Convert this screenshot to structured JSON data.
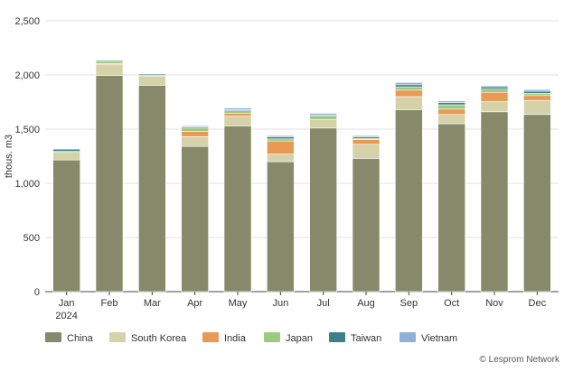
{
  "chart_data": {
    "type": "bar",
    "stacked": true,
    "categories": [
      "Jan",
      "Feb",
      "Mar",
      "Apr",
      "May",
      "Jun",
      "Jul",
      "Aug",
      "Sep",
      "Oct",
      "Nov",
      "Dec"
    ],
    "year_label": "2024",
    "ylabel": "thous. m3",
    "xlabel": "",
    "ylim": [
      0,
      2500
    ],
    "yticks": [
      "0",
      "500",
      "1,000",
      "1,500",
      "2,000",
      "2,500"
    ],
    "ytick_values": [
      0,
      500,
      1000,
      1500,
      2000,
      2500
    ],
    "grid": true,
    "legend_position": "bottom-left",
    "series": [
      {
        "name": "China",
        "color": "#878a6a",
        "values": [
          1215,
          1995,
          1905,
          1340,
          1530,
          1200,
          1510,
          1230,
          1680,
          1550,
          1660,
          1635
        ]
      },
      {
        "name": "South Korea",
        "color": "#d5d1a8",
        "values": [
          70,
          100,
          85,
          90,
          90,
          70,
          80,
          130,
          120,
          85,
          95,
          130
        ]
      },
      {
        "name": "India",
        "color": "#e89a55",
        "values": [
          0,
          10,
          0,
          50,
          25,
          120,
          0,
          45,
          60,
          50,
          85,
          45
        ]
      },
      {
        "name": "Japan",
        "color": "#9cc97e",
        "values": [
          10,
          20,
          10,
          30,
          25,
          20,
          30,
          10,
          30,
          40,
          30,
          20
        ]
      },
      {
        "name": "Taiwan",
        "color": "#3e8089",
        "values": [
          20,
          10,
          10,
          10,
          10,
          20,
          10,
          15,
          20,
          20,
          20,
          20
        ]
      },
      {
        "name": "Vietnam",
        "color": "#8fb0d8",
        "values": [
          5,
          5,
          5,
          10,
          15,
          10,
          15,
          10,
          20,
          15,
          10,
          15
        ]
      }
    ]
  },
  "credit": "© Lesprom Network"
}
